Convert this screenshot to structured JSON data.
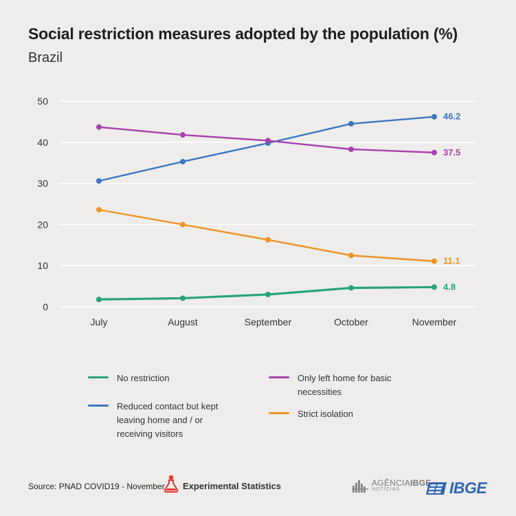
{
  "chart_data": {
    "type": "line",
    "title": "Social restriction measures adopted by the population (%)",
    "subtitle": "Brazil",
    "categories": [
      "July",
      "August",
      "September",
      "October",
      "November"
    ],
    "ylim": [
      0,
      50
    ],
    "yticks": [
      "0",
      "10",
      "20",
      "30",
      "40",
      "50"
    ],
    "grid": true,
    "legend_position": "bottom",
    "series": [
      {
        "name": "No restriction",
        "values": [
          1.8,
          2.1,
          3.0,
          4.6,
          4.8
        ],
        "color": "#27a37a",
        "end_label": "4.8"
      },
      {
        "name": "Reduced contact but kept leaving home and / or receiving visitors",
        "values": [
          30.6,
          35.3,
          39.8,
          44.5,
          46.2
        ],
        "color": "#3c76c1",
        "end_label": "46.2"
      },
      {
        "name": "Only left home for basic necessities",
        "values": [
          43.7,
          41.8,
          40.4,
          38.3,
          37.5
        ],
        "color": "#a841ad",
        "end_label": "37.5"
      },
      {
        "name": "Strict isolation",
        "values": [
          23.6,
          20.0,
          16.3,
          12.5,
          11.1
        ],
        "color": "#ee9324",
        "end_label": "11.1"
      }
    ]
  },
  "legend": [
    {
      "label": "No restriction",
      "lines": [
        "No restriction"
      ],
      "color": "#27a37a"
    },
    {
      "label": "Reduced contact but kept leaving home and / or receiving visitors",
      "lines": [
        "Reduced contact but kept",
        "leaving home and / or",
        "receiving visitors"
      ],
      "color": "#3c76c1"
    },
    {
      "label": "Only left home for basic necessities",
      "lines": [
        "Only left home for basic",
        "necessities"
      ],
      "color": "#a841ad"
    },
    {
      "label": "Strict isolation",
      "lines": [
        "Strict isolation"
      ],
      "color": "#ee9324"
    }
  ],
  "footer": {
    "source": "Source: PNAD COVID19 - November",
    "experimental": "Experimental Statistics",
    "agencia_main_a": "AGÊNCIA",
    "agencia_main_b": "IBGE",
    "agencia_sub": "NOTÍCIAS",
    "ibge": "IBGE"
  },
  "icons": {
    "experimental": "flask-person-icon",
    "agencia": "agencia-skyline-icon",
    "ibge": "ibge-logo-icon"
  }
}
